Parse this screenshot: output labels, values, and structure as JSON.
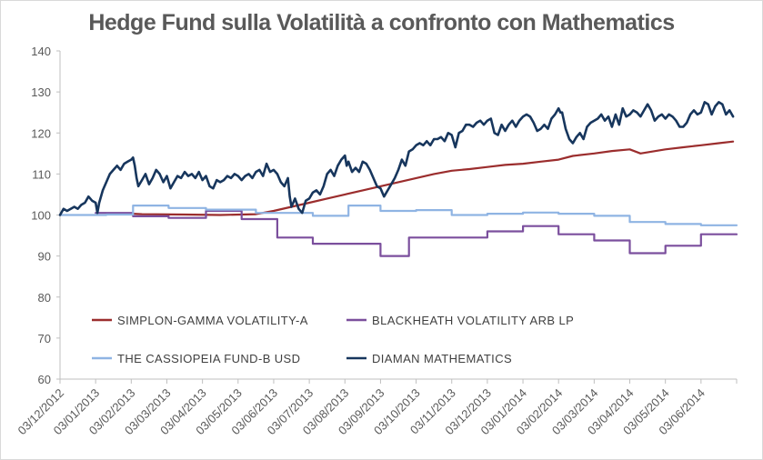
{
  "chart_data": {
    "type": "line",
    "title": "Hedge Fund sulla Volatilità a confronto con Mathematics",
    "xlabel": "",
    "ylabel": "",
    "ylim": [
      60,
      140
    ],
    "yticks": [
      60,
      70,
      80,
      90,
      100,
      110,
      120,
      130,
      140
    ],
    "grid": false,
    "legend_position": "inside-lower-left",
    "x_tick_labels": [
      "03/12/2012",
      "03/01/2013",
      "03/02/2013",
      "03/03/2013",
      "03/04/2013",
      "03/05/2013",
      "03/06/2013",
      "03/07/2013",
      "03/08/2013",
      "03/09/2013",
      "03/10/2013",
      "03/11/2013",
      "03/12/2013",
      "03/01/2014",
      "03/02/2014",
      "03/03/2014",
      "03/04/2014",
      "03/05/2014",
      "03/06/2014"
    ],
    "x_range": [
      0,
      19
    ],
    "series": [
      {
        "name": "SIMPLON-GAMMA VOLATILITY-A",
        "color": "#9b2d2d",
        "points": [
          [
            2.05,
            100.3
          ],
          [
            2.3,
            100.2
          ],
          [
            3.5,
            100.1
          ],
          [
            4.5,
            100.0
          ],
          [
            5.5,
            100.2
          ],
          [
            6.0,
            101.0
          ],
          [
            6.5,
            102.0
          ],
          [
            7.0,
            103.0
          ],
          [
            7.5,
            104.0
          ],
          [
            8.0,
            105.0
          ],
          [
            8.5,
            106.0
          ],
          [
            9.0,
            107.0
          ],
          [
            9.5,
            108.0
          ],
          [
            10.0,
            109.0
          ],
          [
            10.5,
            110.0
          ],
          [
            11.0,
            110.8
          ],
          [
            11.5,
            111.2
          ],
          [
            12.0,
            111.7
          ],
          [
            12.5,
            112.2
          ],
          [
            13.0,
            112.5
          ],
          [
            13.5,
            113.0
          ],
          [
            14.0,
            113.5
          ],
          [
            14.4,
            114.4
          ],
          [
            15.0,
            115.0
          ],
          [
            15.5,
            115.6
          ],
          [
            16.0,
            116.0
          ],
          [
            16.3,
            115.0
          ],
          [
            17.0,
            116.0
          ],
          [
            17.5,
            116.5
          ],
          [
            18.0,
            117.0
          ],
          [
            18.5,
            117.5
          ],
          [
            18.9,
            117.9
          ]
        ]
      },
      {
        "name": "BLACKHEATH VOLATILITY ARB LP",
        "color": "#7b4f9d",
        "points": [
          [
            1.0,
            100.5
          ],
          [
            2.05,
            100.5
          ],
          [
            2.05,
            99.7
          ],
          [
            3.05,
            99.7
          ],
          [
            3.05,
            99.3
          ],
          [
            4.1,
            99.3
          ],
          [
            4.1,
            101.0
          ],
          [
            5.1,
            101.0
          ],
          [
            5.1,
            99.0
          ],
          [
            6.1,
            99.0
          ],
          [
            6.1,
            94.5
          ],
          [
            7.1,
            94.5
          ],
          [
            7.1,
            93.0
          ],
          [
            8.1,
            93.0
          ],
          [
            8.1,
            93.0
          ],
          [
            9.0,
            93.0
          ],
          [
            9.0,
            90.0
          ],
          [
            9.8,
            90.0
          ],
          [
            9.8,
            94.5
          ],
          [
            11.0,
            94.5
          ],
          [
            11.0,
            94.5
          ],
          [
            12.0,
            94.5
          ],
          [
            12.0,
            96.0
          ],
          [
            13.0,
            96.0
          ],
          [
            13.0,
            97.3
          ],
          [
            14.0,
            97.3
          ],
          [
            14.0,
            95.3
          ],
          [
            15.0,
            95.3
          ],
          [
            15.0,
            93.8
          ],
          [
            16.0,
            93.8
          ],
          [
            16.0,
            90.7
          ],
          [
            17.0,
            90.7
          ],
          [
            17.0,
            92.5
          ],
          [
            18.0,
            92.5
          ],
          [
            18.0,
            95.3
          ],
          [
            19.0,
            95.3
          ]
        ]
      },
      {
        "name": "THE CASSIOPEIA FUND-B USD",
        "color": "#8fb4e3",
        "points": [
          [
            0.0,
            100.0
          ],
          [
            1.3,
            100.0
          ],
          [
            1.3,
            100.1
          ],
          [
            2.05,
            100.1
          ],
          [
            2.05,
            102.3
          ],
          [
            3.05,
            102.3
          ],
          [
            3.05,
            101.7
          ],
          [
            4.1,
            101.7
          ],
          [
            4.1,
            101.3
          ],
          [
            5.5,
            101.3
          ],
          [
            5.5,
            100.5
          ],
          [
            7.1,
            100.5
          ],
          [
            7.1,
            99.8
          ],
          [
            8.1,
            99.8
          ],
          [
            8.1,
            102.3
          ],
          [
            9.0,
            102.3
          ],
          [
            9.0,
            101.0
          ],
          [
            10.0,
            101.0
          ],
          [
            10.0,
            101.2
          ],
          [
            11.0,
            101.2
          ],
          [
            11.0,
            100.0
          ],
          [
            12.0,
            100.0
          ],
          [
            12.0,
            100.3
          ],
          [
            13.0,
            100.3
          ],
          [
            13.0,
            100.6
          ],
          [
            14.0,
            100.6
          ],
          [
            14.0,
            100.3
          ],
          [
            15.0,
            100.3
          ],
          [
            15.0,
            99.8
          ],
          [
            16.0,
            99.8
          ],
          [
            16.0,
            98.3
          ],
          [
            17.0,
            98.3
          ],
          [
            17.0,
            97.8
          ],
          [
            18.0,
            97.8
          ],
          [
            18.0,
            97.5
          ],
          [
            19.0,
            97.5
          ]
        ]
      },
      {
        "name": "DIAMAN MATHEMATICS",
        "color": "#17365d",
        "points": [
          [
            0.0,
            100.0
          ],
          [
            0.1,
            101.5
          ],
          [
            0.2,
            101.0
          ],
          [
            0.4,
            102.0
          ],
          [
            0.5,
            101.5
          ],
          [
            0.6,
            102.5
          ],
          [
            0.7,
            103.0
          ],
          [
            0.8,
            104.5
          ],
          [
            0.9,
            103.5
          ],
          [
            1.0,
            103.0
          ],
          [
            1.05,
            100.5
          ],
          [
            1.1,
            103.0
          ],
          [
            1.2,
            106.0
          ],
          [
            1.3,
            108.0
          ],
          [
            1.4,
            110.0
          ],
          [
            1.5,
            111.0
          ],
          [
            1.6,
            112.0
          ],
          [
            1.7,
            111.0
          ],
          [
            1.8,
            112.5
          ],
          [
            1.9,
            113.0
          ],
          [
            2.0,
            113.5
          ],
          [
            2.05,
            114.0
          ],
          [
            2.1,
            112.0
          ],
          [
            2.15,
            109.0
          ],
          [
            2.2,
            107.0
          ],
          [
            2.3,
            108.5
          ],
          [
            2.4,
            110.0
          ],
          [
            2.5,
            107.5
          ],
          [
            2.6,
            109.0
          ],
          [
            2.7,
            111.0
          ],
          [
            2.8,
            110.0
          ],
          [
            2.9,
            108.0
          ],
          [
            3.0,
            109.5
          ],
          [
            3.1,
            106.5
          ],
          [
            3.2,
            108.0
          ],
          [
            3.3,
            109.5
          ],
          [
            3.4,
            109.0
          ],
          [
            3.5,
            110.5
          ],
          [
            3.6,
            109.5
          ],
          [
            3.7,
            110.0
          ],
          [
            3.8,
            109.0
          ],
          [
            3.9,
            110.5
          ],
          [
            4.0,
            108.5
          ],
          [
            4.1,
            109.5
          ],
          [
            4.2,
            107.0
          ],
          [
            4.3,
            106.5
          ],
          [
            4.4,
            108.5
          ],
          [
            4.5,
            108.0
          ],
          [
            4.6,
            108.5
          ],
          [
            4.7,
            109.5
          ],
          [
            4.8,
            109.0
          ],
          [
            4.9,
            110.0
          ],
          [
            5.0,
            109.5
          ],
          [
            5.1,
            108.5
          ],
          [
            5.2,
            109.5
          ],
          [
            5.3,
            110.0
          ],
          [
            5.4,
            109.0
          ],
          [
            5.5,
            110.5
          ],
          [
            5.6,
            111.0
          ],
          [
            5.7,
            109.5
          ],
          [
            5.8,
            112.5
          ],
          [
            5.9,
            110.5
          ],
          [
            6.0,
            111.0
          ],
          [
            6.1,
            110.0
          ],
          [
            6.2,
            108.0
          ],
          [
            6.3,
            107.0
          ],
          [
            6.4,
            109.0
          ],
          [
            6.45,
            104.5
          ],
          [
            6.5,
            102.0
          ],
          [
            6.6,
            104.0
          ],
          [
            6.7,
            101.5
          ],
          [
            6.8,
            100.5
          ],
          [
            6.9,
            103.5
          ],
          [
            7.0,
            104.0
          ],
          [
            7.1,
            105.5
          ],
          [
            7.2,
            106.0
          ],
          [
            7.3,
            105.0
          ],
          [
            7.4,
            107.0
          ],
          [
            7.5,
            110.0
          ],
          [
            7.6,
            111.0
          ],
          [
            7.7,
            109.5
          ],
          [
            7.8,
            112.0
          ],
          [
            7.9,
            113.5
          ],
          [
            8.0,
            114.5
          ],
          [
            8.05,
            112.0
          ],
          [
            8.1,
            113.0
          ],
          [
            8.2,
            110.5
          ],
          [
            8.3,
            111.5
          ],
          [
            8.4,
            110.5
          ],
          [
            8.5,
            113.0
          ],
          [
            8.6,
            112.5
          ],
          [
            8.7,
            111.0
          ],
          [
            8.8,
            109.0
          ],
          [
            8.9,
            107.0
          ],
          [
            9.0,
            106.5
          ],
          [
            9.1,
            104.5
          ],
          [
            9.2,
            106.0
          ],
          [
            9.3,
            107.5
          ],
          [
            9.4,
            109.0
          ],
          [
            9.5,
            111.0
          ],
          [
            9.6,
            113.5
          ],
          [
            9.7,
            112.0
          ],
          [
            9.8,
            115.5
          ],
          [
            9.9,
            116.0
          ],
          [
            10.0,
            117.0
          ],
          [
            10.1,
            117.5
          ],
          [
            10.2,
            117.0
          ],
          [
            10.3,
            118.0
          ],
          [
            10.4,
            117.0
          ],
          [
            10.5,
            118.5
          ],
          [
            10.6,
            118.5
          ],
          [
            10.7,
            119.0
          ],
          [
            10.8,
            118.0
          ],
          [
            10.9,
            120.0
          ],
          [
            11.0,
            119.5
          ],
          [
            11.1,
            116.5
          ],
          [
            11.2,
            120.0
          ],
          [
            11.3,
            120.5
          ],
          [
            11.4,
            122.0
          ],
          [
            11.5,
            122.0
          ],
          [
            11.6,
            121.5
          ],
          [
            11.7,
            122.5
          ],
          [
            11.8,
            123.0
          ],
          [
            11.9,
            122.0
          ],
          [
            12.0,
            123.0
          ],
          [
            12.1,
            123.5
          ],
          [
            12.2,
            120.0
          ],
          [
            12.3,
            119.5
          ],
          [
            12.4,
            122.0
          ],
          [
            12.5,
            120.5
          ],
          [
            12.6,
            122.0
          ],
          [
            12.7,
            123.0
          ],
          [
            12.8,
            121.5
          ],
          [
            12.9,
            123.0
          ],
          [
            13.0,
            124.0
          ],
          [
            13.1,
            124.5
          ],
          [
            13.2,
            124.0
          ],
          [
            13.3,
            122.5
          ],
          [
            13.4,
            120.5
          ],
          [
            13.5,
            121.0
          ],
          [
            13.6,
            122.0
          ],
          [
            13.7,
            121.0
          ],
          [
            13.8,
            123.5
          ],
          [
            13.9,
            124.5
          ],
          [
            14.0,
            126.0
          ],
          [
            14.05,
            125.0
          ],
          [
            14.1,
            125.0
          ],
          [
            14.2,
            121.0
          ],
          [
            14.3,
            118.5
          ],
          [
            14.4,
            117.5
          ],
          [
            14.5,
            119.0
          ],
          [
            14.6,
            120.0
          ],
          [
            14.7,
            118.5
          ],
          [
            14.8,
            121.5
          ],
          [
            14.9,
            122.5
          ],
          [
            15.0,
            123.0
          ],
          [
            15.1,
            123.5
          ],
          [
            15.2,
            124.5
          ],
          [
            15.3,
            123.0
          ],
          [
            15.4,
            124.0
          ],
          [
            15.5,
            121.5
          ],
          [
            15.6,
            124.5
          ],
          [
            15.7,
            122.0
          ],
          [
            15.8,
            126.0
          ],
          [
            15.9,
            124.0
          ],
          [
            16.0,
            124.5
          ],
          [
            16.1,
            125.5
          ],
          [
            16.2,
            125.0
          ],
          [
            16.3,
            124.0
          ],
          [
            16.4,
            125.5
          ],
          [
            16.5,
            127.0
          ],
          [
            16.6,
            125.5
          ],
          [
            16.7,
            123.0
          ],
          [
            16.8,
            124.0
          ],
          [
            16.9,
            124.5
          ],
          [
            17.0,
            123.5
          ],
          [
            17.1,
            124.5
          ],
          [
            17.2,
            124.0
          ],
          [
            17.3,
            123.0
          ],
          [
            17.4,
            121.5
          ],
          [
            17.5,
            121.5
          ],
          [
            17.6,
            122.5
          ],
          [
            17.7,
            124.5
          ],
          [
            17.8,
            125.5
          ],
          [
            17.9,
            124.5
          ],
          [
            18.0,
            125.0
          ],
          [
            18.1,
            127.5
          ],
          [
            18.2,
            127.0
          ],
          [
            18.3,
            124.5
          ],
          [
            18.4,
            126.5
          ],
          [
            18.5,
            127.5
          ],
          [
            18.6,
            127.0
          ],
          [
            18.7,
            124.5
          ],
          [
            18.8,
            125.5
          ],
          [
            18.9,
            124.0
          ]
        ]
      }
    ]
  }
}
